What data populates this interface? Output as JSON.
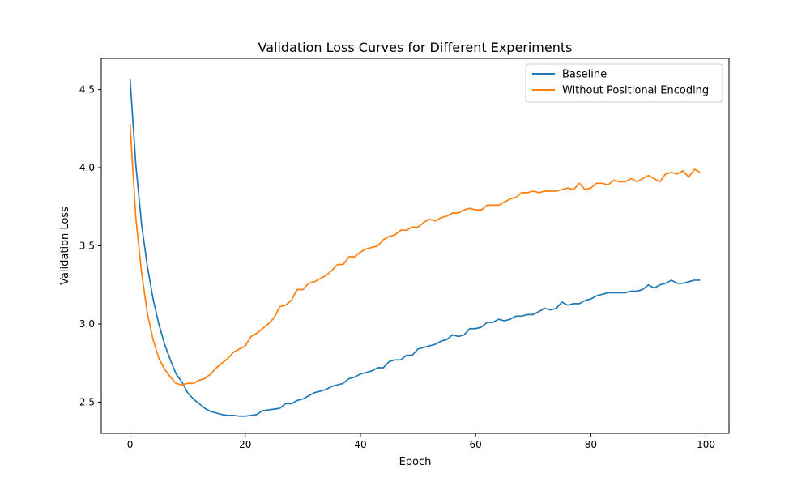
{
  "chart_data": {
    "type": "line",
    "title": "Validation Loss Curves for Different Experiments",
    "xlabel": "Epoch",
    "ylabel": "Validation Loss",
    "xlim": [
      -5,
      104
    ],
    "ylim": [
      2.3,
      4.7
    ],
    "xticks": [
      0,
      20,
      40,
      60,
      80,
      100
    ],
    "yticks": [
      2.5,
      3.0,
      3.5,
      4.0,
      4.5
    ],
    "ytick_labels": [
      "2.5",
      "3.0",
      "3.5",
      "4.0",
      "4.5"
    ],
    "grid": false,
    "legend_position": "top-right",
    "series": [
      {
        "name": "Baseline",
        "color": "#1f77b4",
        "x": [
          0,
          1,
          2,
          3,
          4,
          5,
          6,
          7,
          8,
          9,
          10,
          11,
          12,
          13,
          14,
          15,
          16,
          17,
          18,
          19,
          20,
          21,
          22,
          23,
          24,
          25,
          26,
          27,
          28,
          29,
          30,
          31,
          32,
          33,
          34,
          35,
          36,
          37,
          38,
          39,
          40,
          41,
          42,
          43,
          44,
          45,
          46,
          47,
          48,
          49,
          50,
          51,
          52,
          53,
          54,
          55,
          56,
          57,
          58,
          59,
          60,
          61,
          62,
          63,
          64,
          65,
          66,
          67,
          68,
          69,
          70,
          71,
          72,
          73,
          74,
          75,
          76,
          77,
          78,
          79,
          80,
          81,
          82,
          83,
          84,
          85,
          86,
          87,
          88,
          89,
          90,
          91,
          92,
          93,
          94,
          95,
          96,
          97,
          98,
          99
        ],
        "values": [
          4.57,
          4.02,
          3.64,
          3.37,
          3.16,
          3.0,
          2.87,
          2.77,
          2.68,
          2.63,
          2.56,
          2.52,
          2.49,
          2.46,
          2.44,
          2.43,
          2.42,
          2.415,
          2.415,
          2.41,
          2.41,
          2.415,
          2.42,
          2.445,
          2.45,
          2.455,
          2.46,
          2.49,
          2.49,
          2.51,
          2.52,
          2.54,
          2.56,
          2.57,
          2.58,
          2.6,
          2.61,
          2.62,
          2.65,
          2.66,
          2.68,
          2.69,
          2.7,
          2.72,
          2.72,
          2.76,
          2.77,
          2.77,
          2.8,
          2.8,
          2.84,
          2.85,
          2.86,
          2.87,
          2.89,
          2.9,
          2.93,
          2.92,
          2.93,
          2.97,
          2.97,
          2.98,
          3.01,
          3.01,
          3.03,
          3.02,
          3.03,
          3.05,
          3.05,
          3.06,
          3.06,
          3.08,
          3.1,
          3.09,
          3.1,
          3.14,
          3.12,
          3.13,
          3.13,
          3.15,
          3.16,
          3.18,
          3.19,
          3.2,
          3.2,
          3.2,
          3.2,
          3.21,
          3.21,
          3.22,
          3.25,
          3.23,
          3.25,
          3.26,
          3.28,
          3.26,
          3.26,
          3.27,
          3.28,
          3.28
        ]
      },
      {
        "name": "Without Positional Encoding",
        "color": "#ff7f0e",
        "x": [
          0,
          1,
          2,
          3,
          4,
          5,
          6,
          7,
          8,
          9,
          10,
          11,
          12,
          13,
          14,
          15,
          16,
          17,
          18,
          19,
          20,
          21,
          22,
          23,
          24,
          25,
          26,
          27,
          28,
          29,
          30,
          31,
          32,
          33,
          34,
          35,
          36,
          37,
          38,
          39,
          40,
          41,
          42,
          43,
          44,
          45,
          46,
          47,
          48,
          49,
          50,
          51,
          52,
          53,
          54,
          55,
          56,
          57,
          58,
          59,
          60,
          61,
          62,
          63,
          64,
          65,
          66,
          67,
          68,
          69,
          70,
          71,
          72,
          73,
          74,
          75,
          76,
          77,
          78,
          79,
          80,
          81,
          82,
          83,
          84,
          85,
          86,
          87,
          88,
          89,
          90,
          91,
          92,
          93,
          94,
          95,
          96,
          97,
          98,
          99
        ],
        "values": [
          4.28,
          3.68,
          3.33,
          3.07,
          2.9,
          2.78,
          2.71,
          2.66,
          2.62,
          2.61,
          2.62,
          2.62,
          2.64,
          2.65,
          2.68,
          2.72,
          2.75,
          2.78,
          2.82,
          2.84,
          2.86,
          2.92,
          2.94,
          2.97,
          3.0,
          3.04,
          3.11,
          3.12,
          3.15,
          3.22,
          3.22,
          3.26,
          3.27,
          3.29,
          3.31,
          3.34,
          3.38,
          3.38,
          3.43,
          3.43,
          3.46,
          3.48,
          3.49,
          3.5,
          3.54,
          3.56,
          3.57,
          3.6,
          3.6,
          3.62,
          3.62,
          3.65,
          3.67,
          3.66,
          3.68,
          3.69,
          3.71,
          3.71,
          3.73,
          3.74,
          3.73,
          3.73,
          3.76,
          3.76,
          3.76,
          3.78,
          3.8,
          3.81,
          3.84,
          3.84,
          3.85,
          3.84,
          3.85,
          3.85,
          3.85,
          3.86,
          3.87,
          3.86,
          3.9,
          3.86,
          3.87,
          3.9,
          3.9,
          3.89,
          3.92,
          3.91,
          3.91,
          3.93,
          3.91,
          3.93,
          3.95,
          3.93,
          3.91,
          3.96,
          3.97,
          3.96,
          3.98,
          3.94,
          3.99,
          3.97
        ]
      }
    ]
  }
}
